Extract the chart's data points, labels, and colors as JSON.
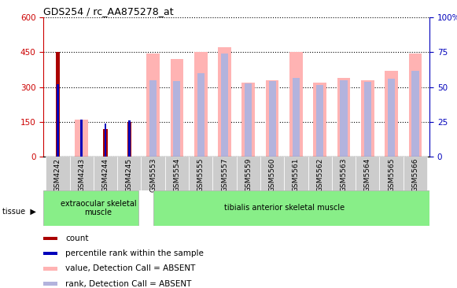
{
  "title": "GDS254 / rc_AA875278_at",
  "categories": [
    "GSM4242",
    "GSM4243",
    "GSM4244",
    "GSM4245",
    "GSM5553",
    "GSM5554",
    "GSM5555",
    "GSM5557",
    "GSM5559",
    "GSM5560",
    "GSM5561",
    "GSM5562",
    "GSM5563",
    "GSM5564",
    "GSM5565",
    "GSM5566"
  ],
  "count": [
    450,
    0,
    120,
    150,
    0,
    0,
    0,
    0,
    0,
    0,
    0,
    0,
    0,
    0,
    0,
    0
  ],
  "percentile_rank": [
    52,
    27,
    24,
    26,
    0,
    0,
    0,
    0,
    0,
    0,
    0,
    0,
    0,
    0,
    0,
    0
  ],
  "value_absent": [
    0,
    160,
    0,
    0,
    445,
    420,
    450,
    470,
    320,
    330,
    450,
    320,
    340,
    330,
    370,
    445
  ],
  "rank_absent": [
    0,
    0,
    0,
    0,
    330,
    325,
    360,
    445,
    315,
    325,
    340,
    310,
    328,
    322,
    335,
    370
  ],
  "ylim_left": [
    0,
    600
  ],
  "ylim_right": [
    0,
    100
  ],
  "yticks_left": [
    0,
    150,
    300,
    450,
    600
  ],
  "yticks_right": [
    0,
    25,
    50,
    75,
    100
  ],
  "left_axis_color": "#cc0000",
  "right_axis_color": "#0000bb",
  "count_color": "#aa0000",
  "percentile_color": "#0000bb",
  "value_absent_color": "#ffb3b3",
  "rank_absent_color": "#b3b3dd",
  "tissue_group1": "extraocular skeletal\nmuscle",
  "tissue_group1_count": 4,
  "tissue_group2": "tibialis anterior skeletal muscle",
  "tissue_bg_color": "#88ee88",
  "tissue_label": "tissue",
  "legend_items": [
    "count",
    "percentile rank within the sample",
    "value, Detection Call = ABSENT",
    "rank, Detection Call = ABSENT"
  ],
  "legend_colors": [
    "#aa0000",
    "#0000bb",
    "#ffb3b3",
    "#b3b3dd"
  ],
  "xtick_bg_color": "#cccccc"
}
